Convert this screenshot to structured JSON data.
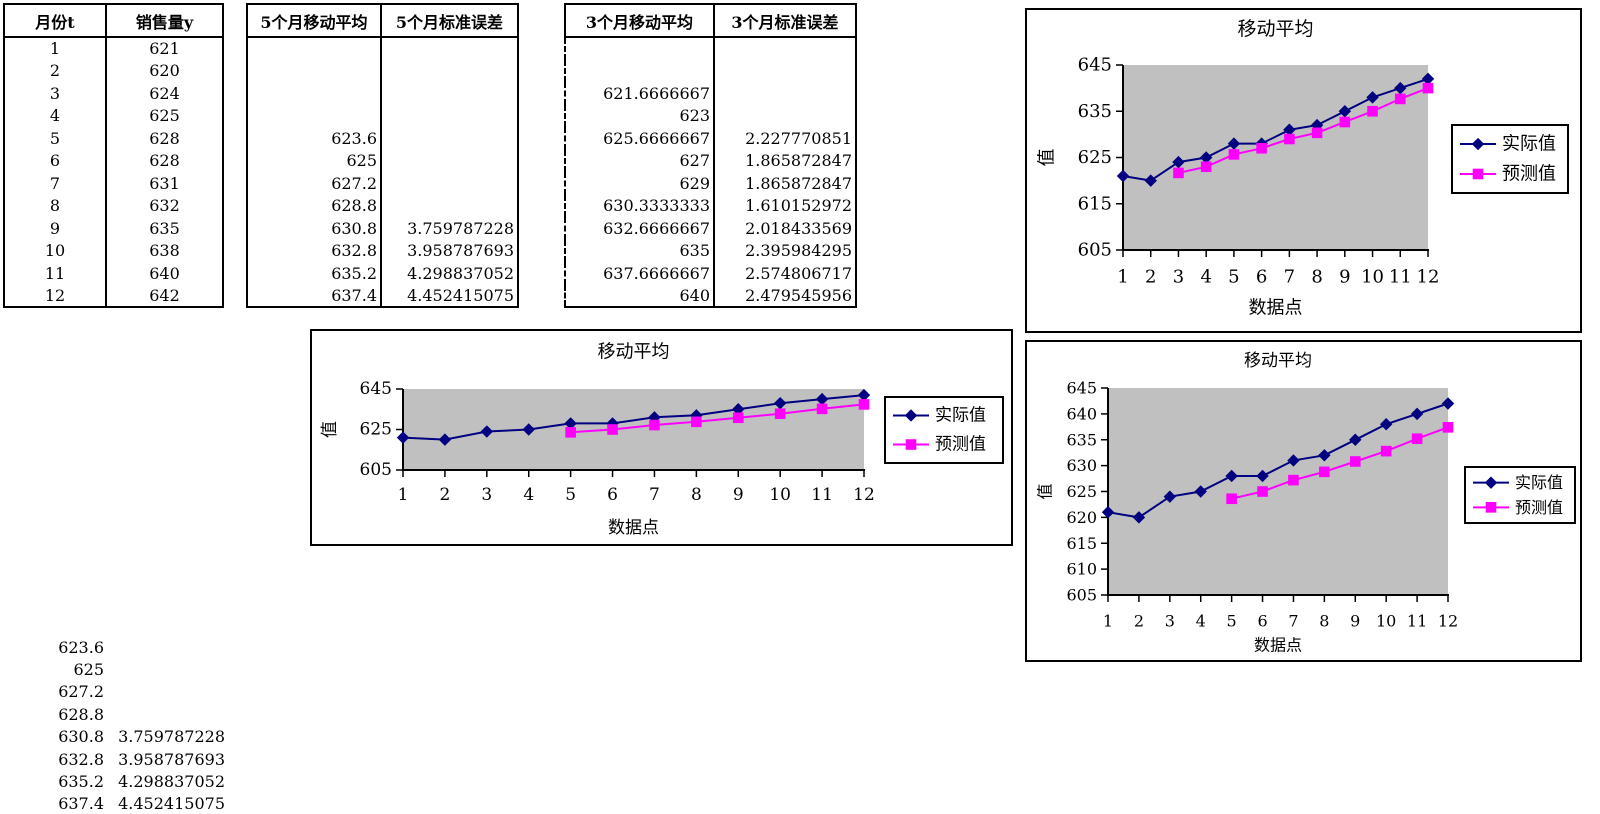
{
  "colors": {
    "actual": "#000080",
    "forecast": "#FF00FF",
    "plot_bg": "#C0C0C0",
    "frame": "#000000",
    "background": "#FFFFFF"
  },
  "tables": {
    "sales": {
      "headers": [
        "月份t",
        "销售量y"
      ],
      "rows": [
        [
          "1",
          "621"
        ],
        [
          "2",
          "620"
        ],
        [
          "3",
          "624"
        ],
        [
          "4",
          "625"
        ],
        [
          "5",
          "628"
        ],
        [
          "6",
          "628"
        ],
        [
          "7",
          "631"
        ],
        [
          "8",
          "632"
        ],
        [
          "9",
          "635"
        ],
        [
          "10",
          "638"
        ],
        [
          "11",
          "640"
        ],
        [
          "12",
          "642"
        ]
      ]
    },
    "ma5": {
      "headers": [
        "5个月移动平均",
        "5个月标准误差"
      ],
      "rows": [
        [
          "",
          ""
        ],
        [
          "",
          ""
        ],
        [
          "",
          ""
        ],
        [
          "",
          ""
        ],
        [
          "623.6",
          ""
        ],
        [
          "625",
          ""
        ],
        [
          "627.2",
          ""
        ],
        [
          "628.8",
          ""
        ],
        [
          "630.8",
          "3.759787228"
        ],
        [
          "632.8",
          "3.958787693"
        ],
        [
          "635.2",
          "4.298837052"
        ],
        [
          "637.4",
          "4.452415075"
        ]
      ]
    },
    "ma3": {
      "headers": [
        "3个月移动平均",
        "3个月标准误差"
      ],
      "rows": [
        [
          "",
          ""
        ],
        [
          "",
          ""
        ],
        [
          "621.6666667",
          ""
        ],
        [
          "623",
          ""
        ],
        [
          "625.6666667",
          "2.227770851"
        ],
        [
          "627",
          "1.865872847"
        ],
        [
          "629",
          "1.865872847"
        ],
        [
          "630.3333333",
          "1.610152972"
        ],
        [
          "632.6666667",
          "2.018433569"
        ],
        [
          "635",
          "2.395984295"
        ],
        [
          "637.6666667",
          "2.574806717"
        ],
        [
          "640",
          "2.479545956"
        ]
      ]
    }
  },
  "loose_values": {
    "rows": [
      [
        "623.6",
        ""
      ],
      [
        "625",
        ""
      ],
      [
        "627.2",
        ""
      ],
      [
        "628.8",
        ""
      ],
      [
        "630.8",
        "3.759787228"
      ],
      [
        "632.8",
        "3.958787693"
      ],
      [
        "635.2",
        "4.298837052"
      ],
      [
        "637.4",
        "4.452415075"
      ]
    ]
  },
  "chart_data": [
    {
      "type": "line",
      "title": "移动平均",
      "xlabel": "数据点",
      "ylabel": "值",
      "x": [
        1,
        2,
        3,
        4,
        5,
        6,
        7,
        8,
        9,
        10,
        11,
        12
      ],
      "ylim": [
        605,
        645
      ],
      "yticks": [
        605,
        615,
        625,
        635,
        645
      ],
      "grid": false,
      "legend_position": "right",
      "plot_bg": "#C0C0C0",
      "series": [
        {
          "name": "实际值",
          "color": "#000080",
          "marker": "diamond",
          "values": [
            621,
            620,
            624,
            625,
            628,
            628,
            631,
            632,
            635,
            638,
            640,
            642
          ]
        },
        {
          "name": "预测值",
          "color": "#FF00FF",
          "marker": "square",
          "values": [
            null,
            null,
            621.6666667,
            623,
            625.6666667,
            627,
            629,
            630.3333333,
            632.6666667,
            635,
            637.6666667,
            640
          ]
        }
      ]
    },
    {
      "type": "line",
      "title": "移动平均",
      "xlabel": "数据点",
      "ylabel": "值",
      "x": [
        1,
        2,
        3,
        4,
        5,
        6,
        7,
        8,
        9,
        10,
        11,
        12
      ],
      "ylim": [
        605,
        645
      ],
      "yticks": [
        605,
        625,
        645
      ],
      "grid": false,
      "legend_position": "right",
      "plot_bg": "#C0C0C0",
      "series": [
        {
          "name": "实际值",
          "color": "#000080",
          "marker": "diamond",
          "values": [
            621,
            620,
            624,
            625,
            628,
            628,
            631,
            632,
            635,
            638,
            640,
            642
          ]
        },
        {
          "name": "预测值",
          "color": "#FF00FF",
          "marker": "square",
          "values": [
            null,
            null,
            null,
            null,
            623.6,
            625,
            627.2,
            628.8,
            630.8,
            632.8,
            635.2,
            637.4
          ]
        }
      ]
    },
    {
      "type": "line",
      "title": "移动平均",
      "xlabel": "数据点",
      "ylabel": "值",
      "x": [
        1,
        2,
        3,
        4,
        5,
        6,
        7,
        8,
        9,
        10,
        11,
        12
      ],
      "ylim": [
        605,
        645
      ],
      "yticks": [
        605,
        610,
        615,
        620,
        625,
        630,
        635,
        640,
        645
      ],
      "grid": false,
      "legend_position": "right",
      "plot_bg": "#C0C0C0",
      "series": [
        {
          "name": "实际值",
          "color": "#000080",
          "marker": "diamond",
          "values": [
            621,
            620,
            624,
            625,
            628,
            628,
            631,
            632,
            635,
            638,
            640,
            642
          ]
        },
        {
          "name": "预测值",
          "color": "#FF00FF",
          "marker": "square",
          "values": [
            null,
            null,
            null,
            null,
            623.6,
            625,
            627.2,
            628.8,
            630.8,
            632.8,
            635.2,
            637.4
          ]
        }
      ]
    }
  ]
}
